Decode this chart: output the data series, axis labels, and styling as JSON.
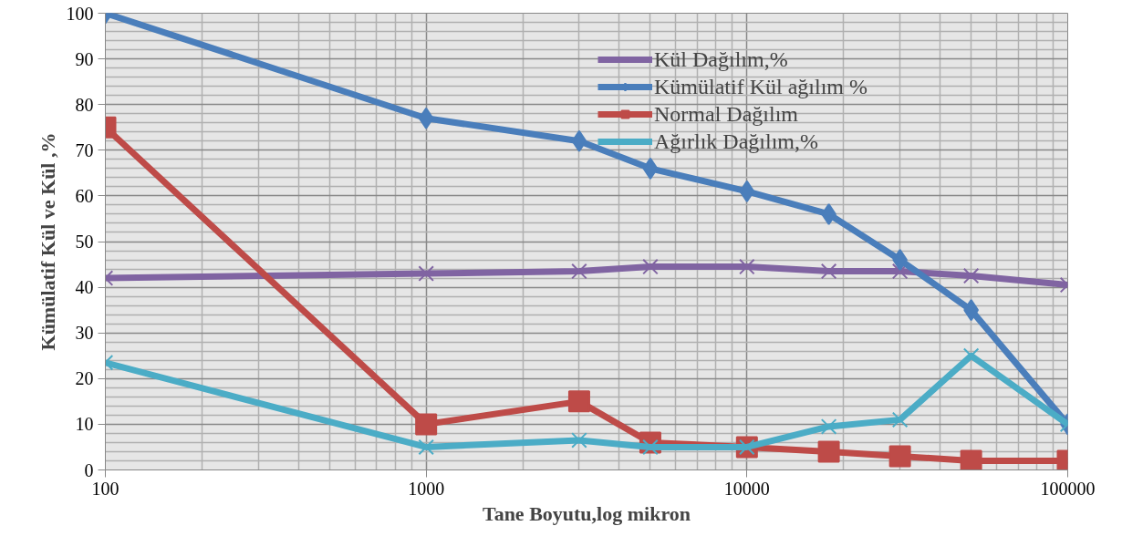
{
  "chart_data": {
    "type": "line",
    "xlabel": "Tane Boyutu,log mikron",
    "ylabel": "Kümülatif Kül ve Kül ,%",
    "x": [
      100,
      1000,
      3000,
      5000,
      10000,
      18000,
      30000,
      50000,
      100000
    ],
    "series": [
      {
        "name": "Kül Dağılım,%",
        "color": "#8064a2",
        "marker": "cross",
        "values": [
          42,
          43,
          43.5,
          44.5,
          44.5,
          43.5,
          43.5,
          42.5,
          40.5
        ]
      },
      {
        "name": "Kümülatif Kül ağılım %",
        "color": "#4a7ebb",
        "marker": "diamond",
        "values": [
          100,
          77,
          72,
          66,
          61,
          56,
          46,
          35,
          10
        ]
      },
      {
        "name": "Normal Dağılım",
        "color": "#be4b48",
        "marker": "square",
        "values": [
          75,
          10,
          15,
          6,
          5,
          4,
          3,
          2,
          2
        ]
      },
      {
        "name": "Ağırlık Dağılım,%",
        "color": "#4bacc6",
        "marker": "cross",
        "values": [
          23.5,
          5,
          6.5,
          5,
          5,
          9.5,
          11,
          25,
          10
        ]
      }
    ],
    "log": "x",
    "xlim": [
      100,
      100000
    ],
    "xticks": [
      100,
      1000,
      10000,
      100000
    ],
    "ylim": [
      0,
      100
    ],
    "yticks": [
      0,
      10,
      20,
      30,
      40,
      50,
      60,
      70,
      80,
      90,
      100
    ],
    "grid": true,
    "legend": "top right",
    "line_style": "solid"
  }
}
